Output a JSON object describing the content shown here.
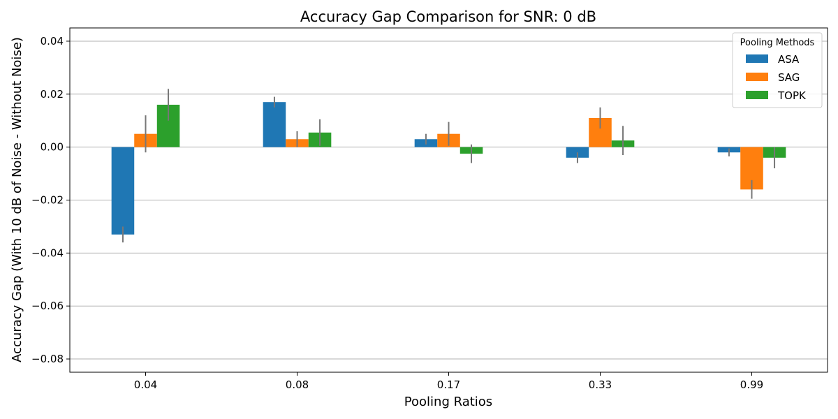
{
  "chart_data": {
    "type": "bar",
    "title": "Accuracy Gap Comparison for SNR: 0 dB",
    "xlabel": "Pooling Ratios",
    "ylabel": "Accuracy Gap (With 10 dB of Noise - Without Noise)",
    "categories": [
      "0.04",
      "0.08",
      "0.17",
      "0.33",
      "0.99"
    ],
    "ylim": [
      -0.085,
      0.045
    ],
    "yticks": [
      0.04,
      0.02,
      0.0,
      -0.02,
      -0.04,
      -0.06,
      -0.08
    ],
    "ytick_labels": [
      "0.04",
      "0.02",
      "0.00",
      "−0.02",
      "−0.04",
      "−0.06",
      "−0.08"
    ],
    "grid": "y",
    "legend": {
      "title": "Pooling Methods",
      "position": "top-right"
    },
    "series": [
      {
        "name": "ASA",
        "color": "#1f77b4",
        "values": [
          -0.033,
          0.017,
          0.003,
          -0.004,
          -0.002
        ],
        "errors": [
          0.003,
          0.002,
          0.002,
          0.002,
          0.0015
        ]
      },
      {
        "name": "SAG",
        "color": "#ff7f0e",
        "values": [
          0.005,
          0.003,
          0.005,
          0.011,
          -0.016
        ],
        "errors": [
          0.007,
          0.003,
          0.0045,
          0.004,
          0.0035
        ]
      },
      {
        "name": "TOPK",
        "color": "#2ca02c",
        "values": [
          0.016,
          0.0055,
          -0.0025,
          0.0025,
          -0.004
        ],
        "errors": [
          0.006,
          0.005,
          0.0035,
          0.0055,
          0.004
        ]
      }
    ],
    "error_bar_color": "#777777"
  }
}
